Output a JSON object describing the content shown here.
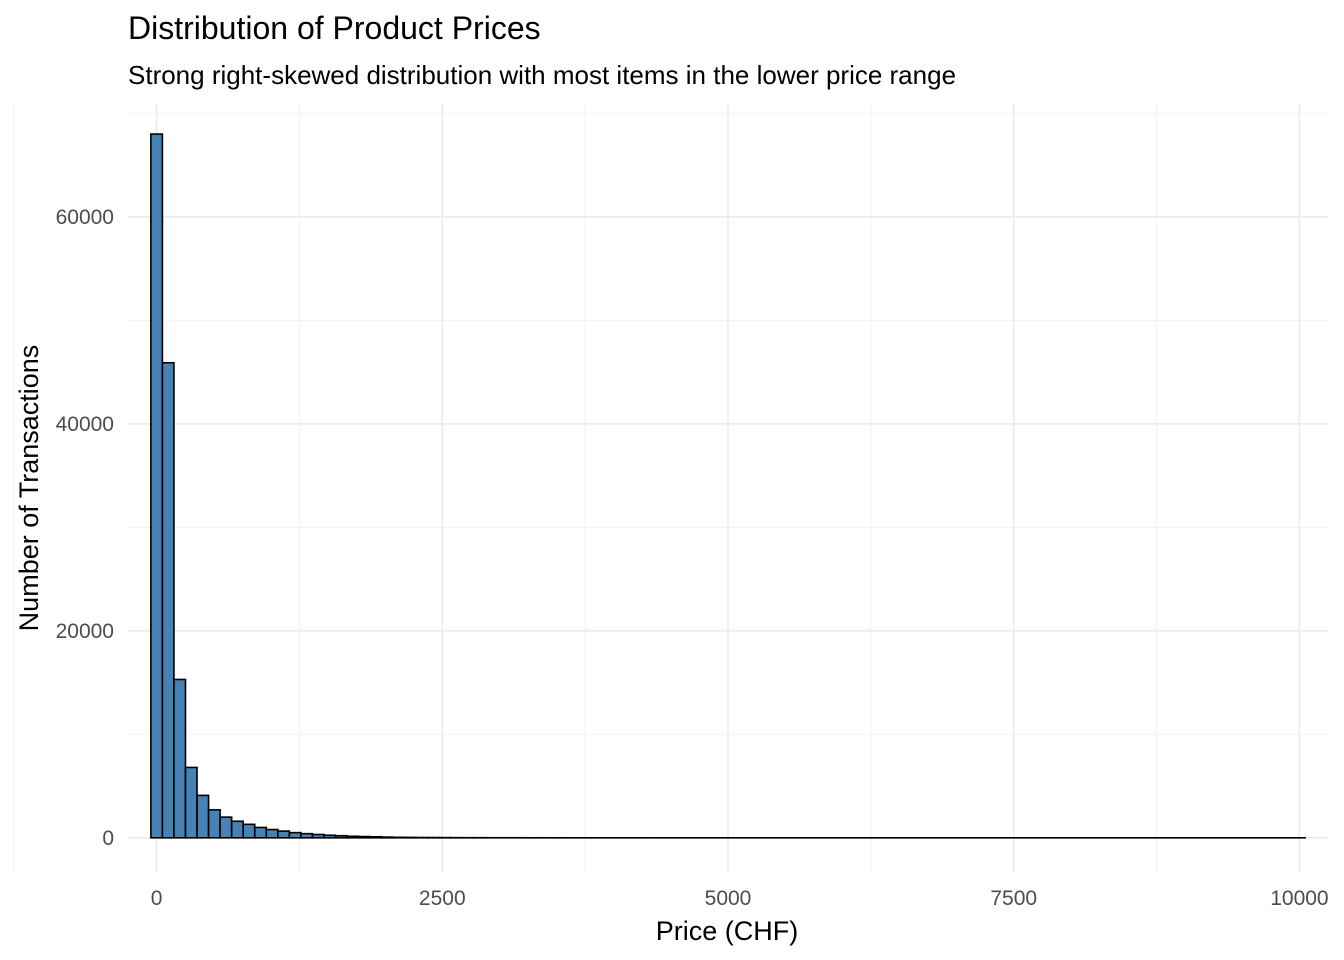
{
  "chart_data": {
    "type": "bar",
    "title": "Distribution of Product Prices",
    "subtitle": "Strong right-skewed distribution with most items in the lower price range",
    "xlabel": "Price (CHF)",
    "ylabel": "Number of Transactions",
    "xlim": [
      -250,
      10250
    ],
    "ylim": [
      -3400,
      71000
    ],
    "x_ticks": [
      0,
      2500,
      5000,
      7500,
      10000
    ],
    "x_tick_labels": [
      "0",
      "2500",
      "5000",
      "7500",
      "10000"
    ],
    "y_ticks": [
      0,
      20000,
      40000,
      60000
    ],
    "y_tick_labels": [
      "0",
      "20000",
      "40000",
      "60000"
    ],
    "grid": true,
    "bin_width": 101,
    "bins_start": -50,
    "bar_fill": "#4682B4",
    "bar_edge": "#000000",
    "values": [
      68000,
      45900,
      15300,
      6800,
      4100,
      2700,
      2000,
      1600,
      1300,
      1000,
      800,
      650,
      500,
      400,
      320,
      250,
      200,
      150,
      120,
      100,
      70,
      50,
      40,
      30,
      25,
      20,
      15,
      12,
      10,
      8,
      7,
      6,
      5,
      5,
      4,
      4,
      3,
      3,
      3,
      2,
      2,
      2,
      2,
      2,
      1,
      1,
      1,
      1,
      1,
      1,
      1,
      1,
      1,
      1,
      1,
      1,
      1,
      1,
      1,
      1,
      1,
      1,
      1,
      1,
      1,
      1,
      1,
      1,
      1,
      1,
      1,
      1,
      1,
      1,
      1,
      1,
      1,
      1,
      1,
      1,
      1,
      1,
      1,
      1,
      1,
      1,
      1,
      1,
      1,
      1,
      1,
      1,
      1,
      1,
      1,
      1,
      1,
      1,
      1,
      1
    ]
  }
}
